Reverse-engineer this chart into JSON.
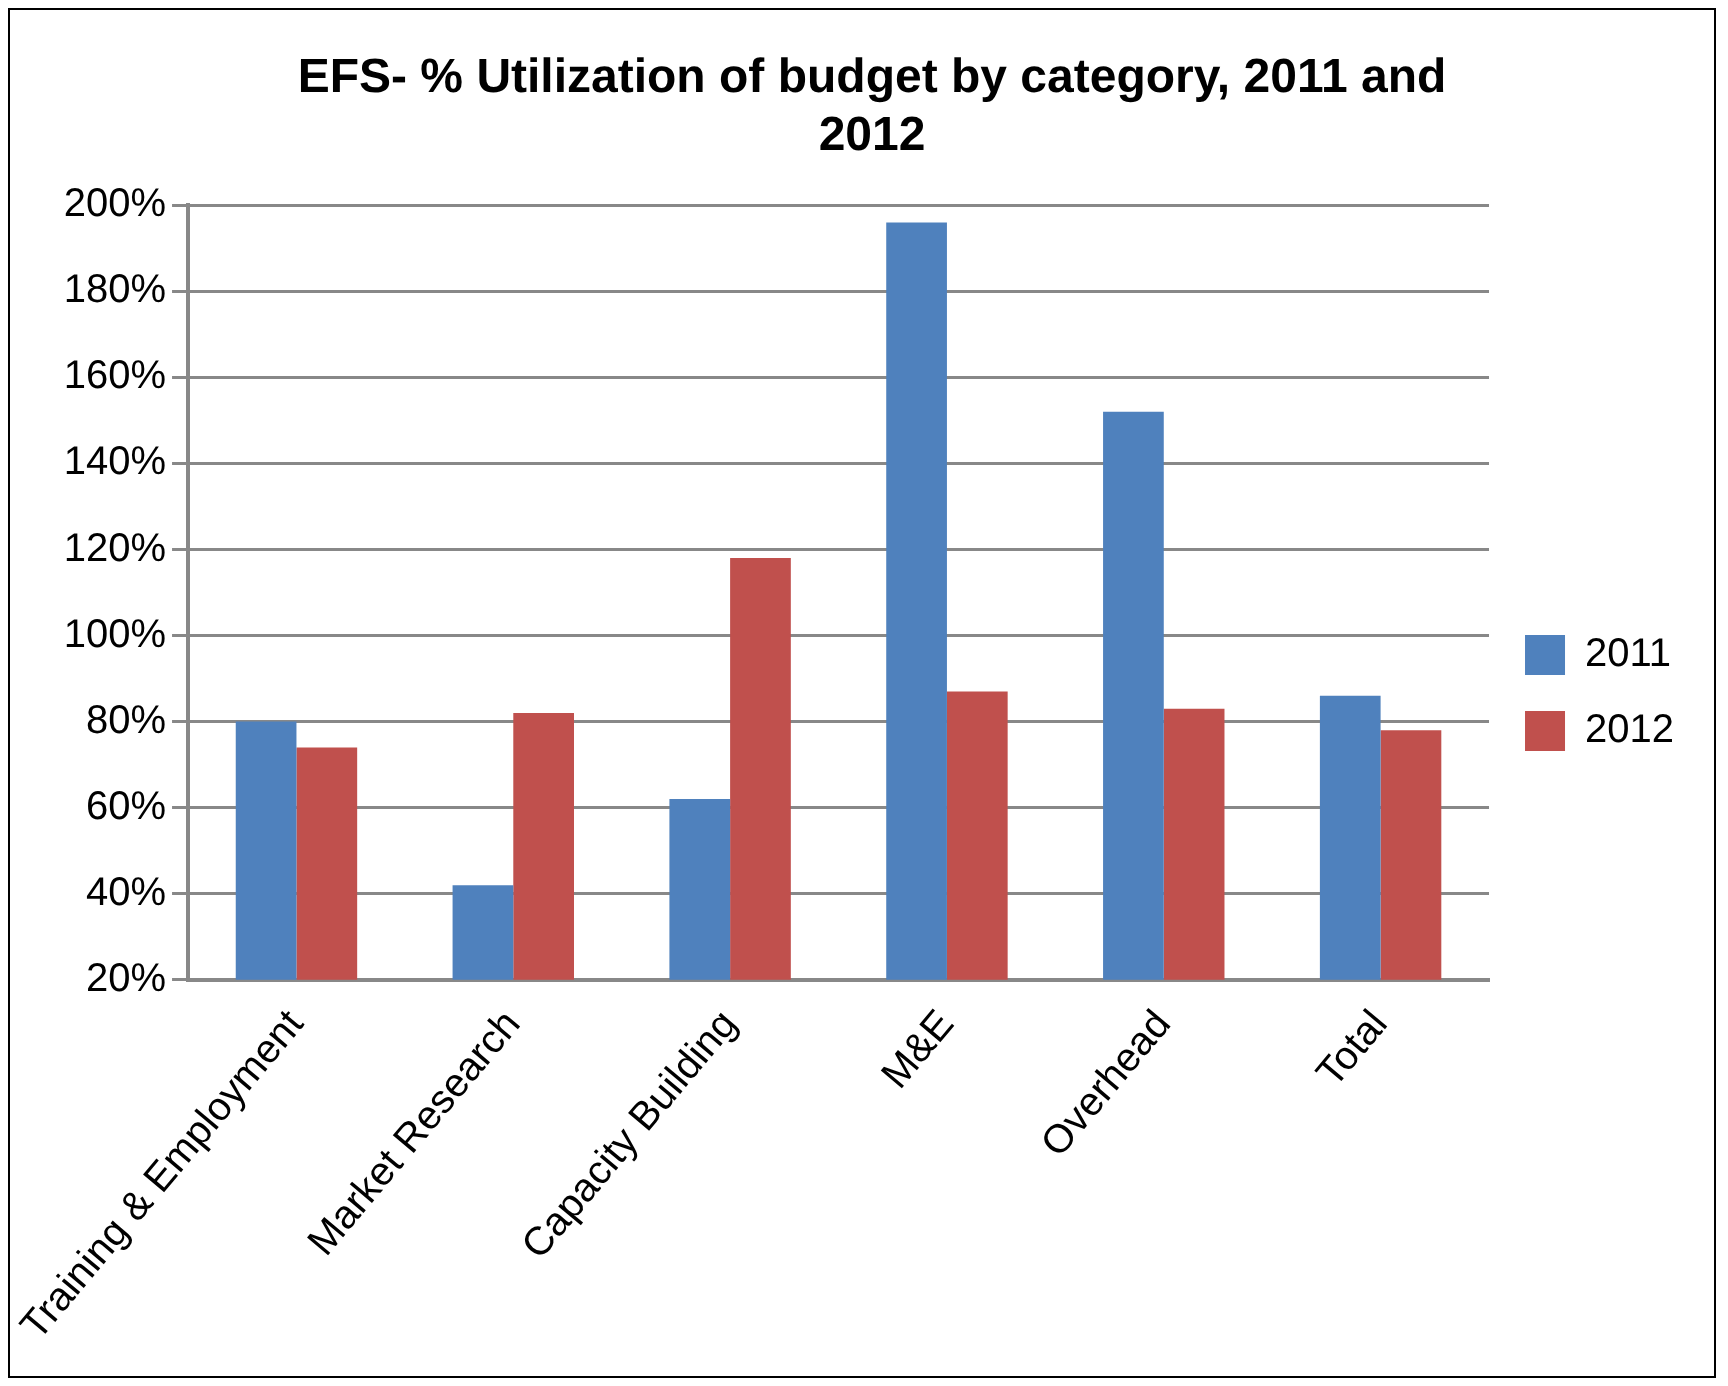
{
  "chart_data": {
    "type": "bar",
    "title": "EFS- % Utilization of budget by category, 2011 and 2012",
    "categories": [
      "Training & Employment",
      "Market Research",
      "Capacity Building",
      "M&E",
      "Overhead",
      "Total"
    ],
    "series": [
      {
        "name": "2011",
        "color": "#4f81bd",
        "values": [
          80,
          42,
          62,
          196,
          152,
          86
        ]
      },
      {
        "name": "2012",
        "color": "#c0504d",
        "values": [
          74,
          82,
          118,
          87,
          83,
          78
        ]
      }
    ],
    "ylim": [
      20,
      200
    ],
    "yticks": [
      {
        "value": 20,
        "label": "20%"
      },
      {
        "value": 40,
        "label": "40%"
      },
      {
        "value": 60,
        "label": "60%"
      },
      {
        "value": 80,
        "label": "80%"
      },
      {
        "value": 100,
        "label": "100%"
      },
      {
        "value": 120,
        "label": "120%"
      },
      {
        "value": 140,
        "label": "140%"
      },
      {
        "value": 160,
        "label": "160%"
      },
      {
        "value": 180,
        "label": "180%"
      },
      {
        "value": 200,
        "label": "200%"
      }
    ],
    "grid": "y",
    "legend": "right"
  }
}
